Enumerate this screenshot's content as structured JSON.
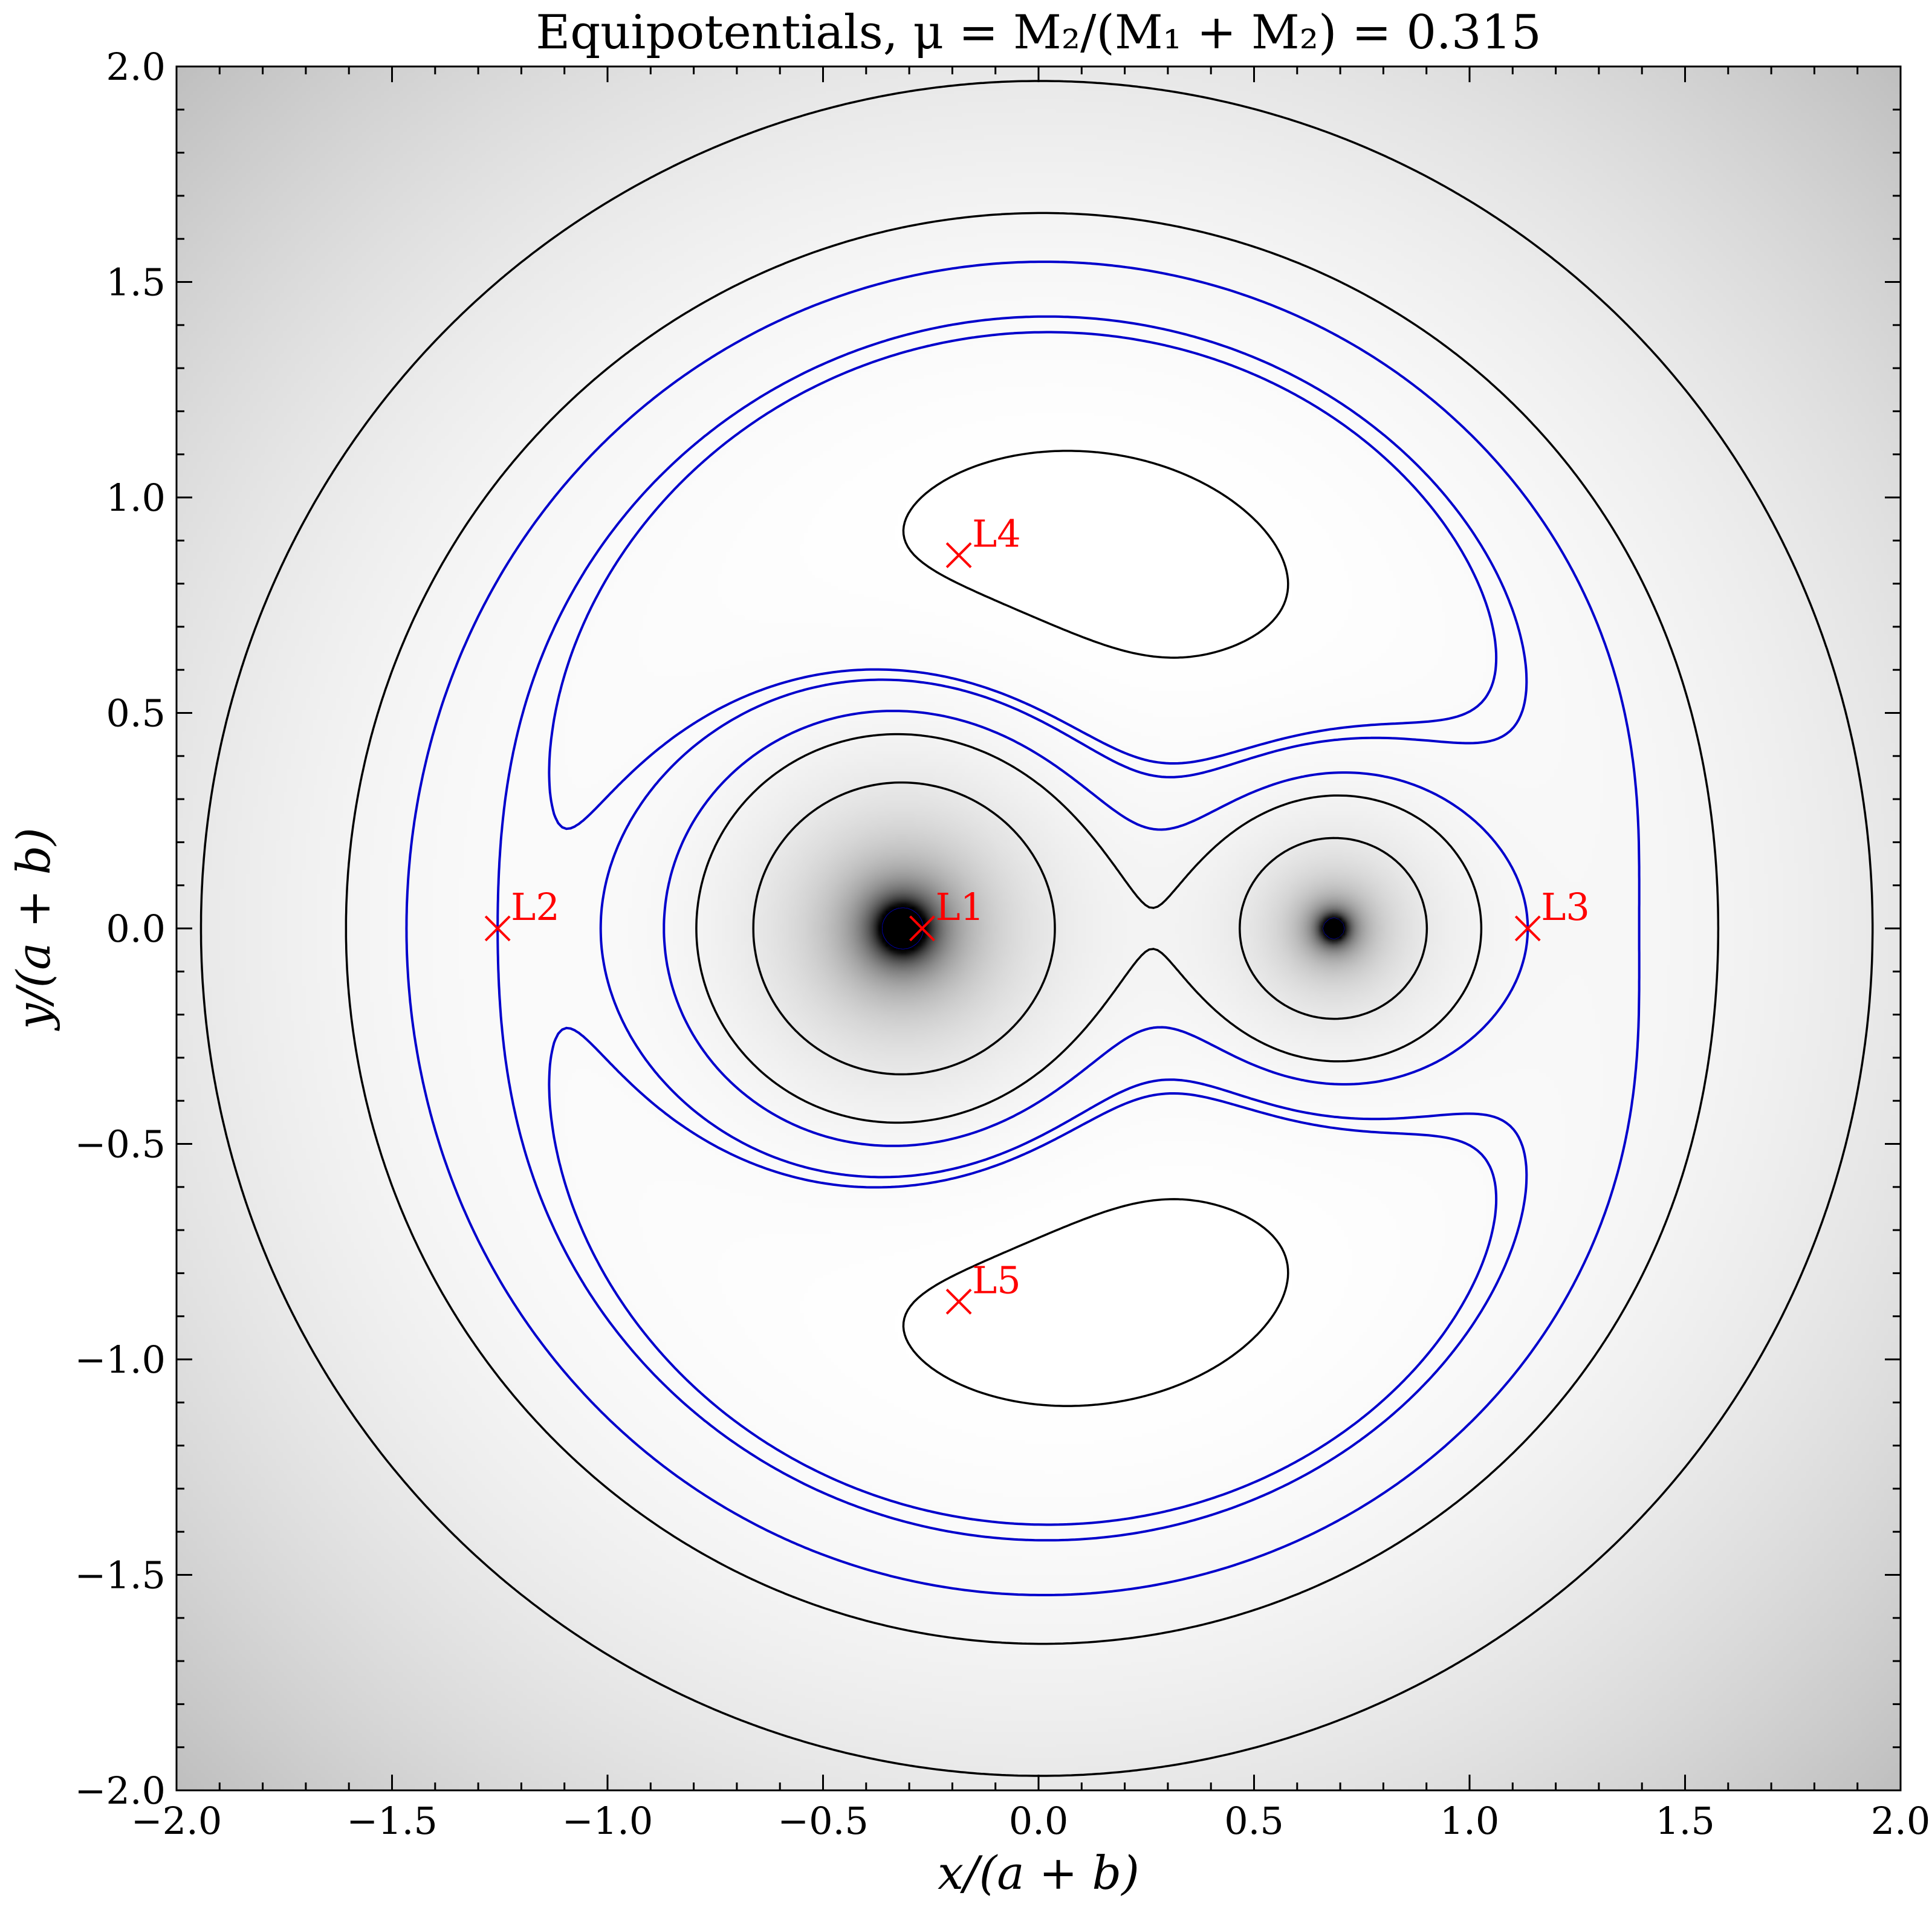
{
  "chart_data": {
    "type": "contour",
    "title": "Equipotentials, μ = M₂/(M₁ + M₂) = 0.315",
    "xlabel": "x/(a + b)",
    "ylabel": "y/(a + b)",
    "xlim": [
      -2.0,
      2.0
    ],
    "ylim": [
      -2.0,
      2.0
    ],
    "x_ticks": [
      -2.0,
      -1.5,
      -1.0,
      -0.5,
      0.0,
      0.5,
      1.0,
      1.5,
      2.0
    ],
    "y_ticks": [
      -2.0,
      -1.5,
      -1.0,
      -0.5,
      0.0,
      0.5,
      1.0,
      1.5,
      2.0
    ],
    "x_tick_labels": [
      "−2.0",
      "−1.5",
      "−1.0",
      "−0.5",
      "0.0",
      "0.5",
      "1.0",
      "1.5",
      "2.0"
    ],
    "y_tick_labels": [
      "−2.0",
      "−1.5",
      "−1.0",
      "−0.5",
      "0.0",
      "0.5",
      "1.0",
      "1.5",
      "2.0"
    ],
    "mu": 0.315,
    "grid": false,
    "background": "grayscale potential shading (white high, gray low)",
    "colors": {
      "regular_contours": "#000000",
      "lagrange_contours": "#0000cc",
      "lagrange_markers": "#ff0000"
    },
    "lagrange_points": [
      {
        "name": "L1",
        "x": -0.27,
        "y": 0.0
      },
      {
        "name": "L2",
        "x": -1.255,
        "y": 0.0
      },
      {
        "name": "L3",
        "x": 1.135,
        "y": 0.0
      },
      {
        "name": "L4",
        "x": -0.185,
        "y": 0.866
      },
      {
        "name": "L5",
        "x": -0.185,
        "y": -0.866
      }
    ],
    "masses": [
      {
        "x": -0.685,
        "y": 0.0
      },
      {
        "x": 0.315,
        "y": 0.0
      }
    ]
  }
}
